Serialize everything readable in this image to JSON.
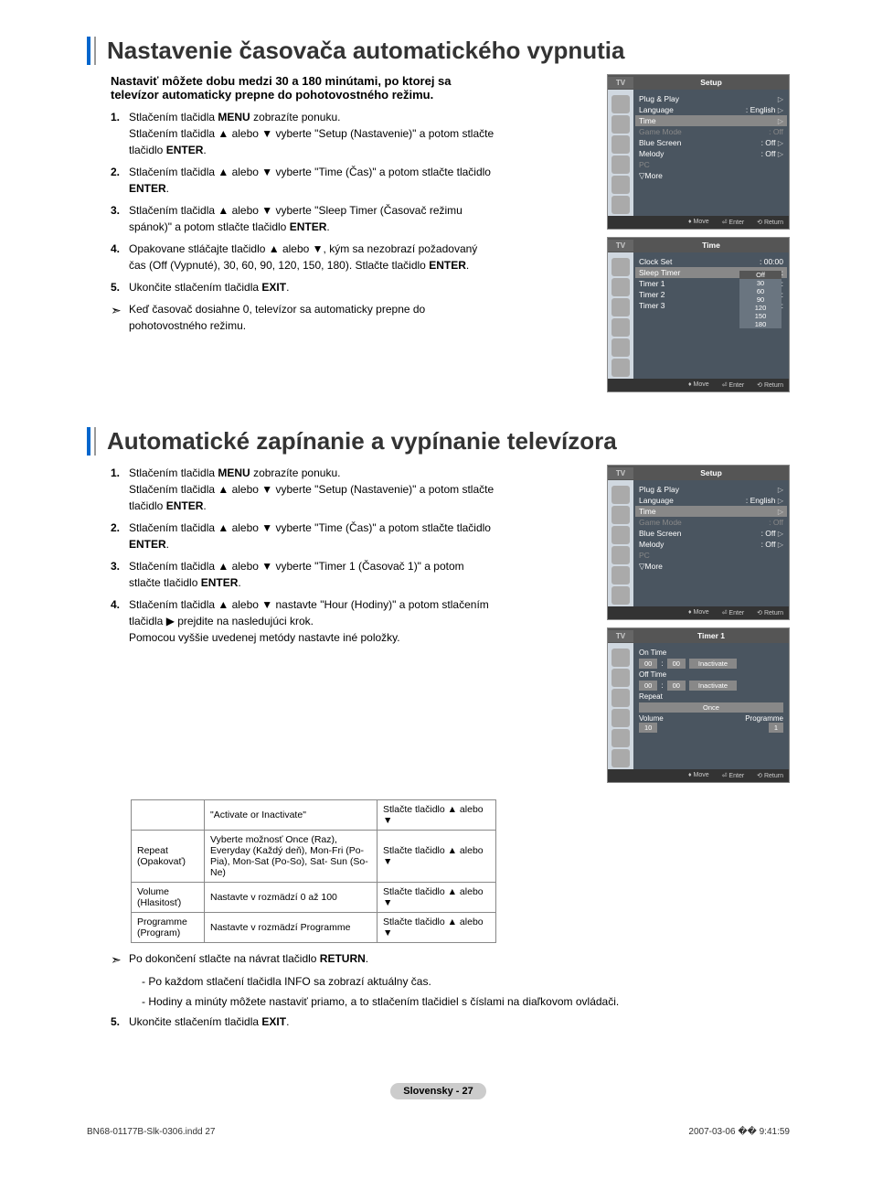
{
  "section1": {
    "title": "Nastavenie časovača automatického vypnutia",
    "intro": "Nastaviť môžete dobu medzi 30 a 180 minútami, po ktorej sa televízor automaticky prepne do pohotovostného režimu.",
    "steps": [
      "Stlačením tlačidla <b>MENU</b> zobrazíte ponuku.<br>Stlačením tlačidla ▲ alebo ▼ vyberte \"Setup (Nastavenie)\" a potom stlačte tlačidlo <b>ENTER</b>.",
      "Stlačením tlačidla ▲ alebo ▼ vyberte \"Time (Čas)\" a potom stlačte tlačidlo <b>ENTER</b>.",
      "Stlačením tlačidla ▲ alebo ▼ vyberte \"Sleep Timer (Časovač režimu spánok)\" a potom stlačte tlačidlo <b>ENTER</b>.",
      "Opakovane stláčajte tlačidlo ▲ alebo ▼, kým sa nezobrazí požadovaný čas (Off (Vypnuté), 30, 60, 90, 120, 150, 180). Stlačte tlačidlo <b>ENTER</b>.",
      "Ukončite stlačením tlačidla <b>EXIT</b>."
    ],
    "note": "Keď časovač dosiahne 0, televízor sa automaticky prepne do pohotovostného režimu."
  },
  "section2": {
    "title": "Automatické zapínanie a vypínanie televízora",
    "steps": [
      "Stlačením tlačidla <b>MENU</b> zobrazíte ponuku.<br>Stlačením tlačidla ▲ alebo ▼ vyberte \"Setup (Nastavenie)\" a potom stlačte tlačidlo <b>ENTER</b>.",
      "Stlačením tlačidla ▲ alebo ▼ vyberte \"Time (Čas)\" a potom stlačte tlačidlo <b>ENTER</b>.",
      "Stlačením tlačidla ▲ alebo ▼ vyberte \"Timer 1 (Časovač 1)\" a potom stlačte tlačidlo <b>ENTER</b>.",
      "Stlačením tlačidla ▲ alebo ▼ nastavte \"Hour (Hodiny)\" a potom stlačením tlačidla ▶ prejdite na nasledujúci krok.<br>Pomocou vyššie uvedenej metódy nastavte iné položky."
    ],
    "table": {
      "rows": [
        {
          "c1": "",
          "c2": "\"Activate or Inactivate\"",
          "c3": "Stlačte tlačidlo ▲ alebo ▼"
        },
        {
          "c1": "Repeat (Opakovať)",
          "c2": "Vyberte možnosť Once (Raz), Everyday (Každý deň), Mon-Fri (Po-Pia), Mon-Sat (Po-So), Sat- Sun (So-Ne)",
          "c3": "Stlačte tlačidlo ▲ alebo ▼"
        },
        {
          "c1": "Volume (Hlasitosť)",
          "c2": "Nastavte v rozmädzí 0 až 100",
          "c3": "Stlačte tlačidlo ▲ alebo ▼"
        },
        {
          "c1": "Programme (Program)",
          "c2": "Nastavte v rozmädzí Programme",
          "c3": "Stlačte tlačidlo ▲ alebo ▼"
        }
      ]
    },
    "note_return": "Po dokončení stlačte na návrat tlačidlo <b>RETURN</b>.",
    "subnotes": [
      "- Po každom stlačení tlačidla INFO sa zobrazí aktuálny čas.",
      "- Hodiny a minúty môžete nastaviť priamo, a to stlačením tlačidiel s číslami na diaľkovom ovládači."
    ],
    "step5": "Ukončite stlačením tlačidla <b>EXIT</b>."
  },
  "tvmenus": {
    "setup": {
      "title": "Setup",
      "items": [
        {
          "l": "Plug & Play",
          "v": "",
          "arrow": true
        },
        {
          "l": "Language",
          "v": ": English",
          "arrow": true
        },
        {
          "l": "Time",
          "v": "",
          "hl": true,
          "arrow": true
        },
        {
          "l": "Game Mode",
          "v": ": Off",
          "dim": true
        },
        {
          "l": "Blue Screen",
          "v": ": Off",
          "arrow": true
        },
        {
          "l": "Melody",
          "v": ": Off",
          "arrow": true
        },
        {
          "l": "PC",
          "v": "",
          "dim": true
        },
        {
          "l": "▽More",
          "v": ""
        }
      ]
    },
    "time": {
      "title": "Time",
      "items": [
        {
          "l": "Clock Set",
          "v": ": 00:00"
        },
        {
          "l": "Sleep Timer",
          "v": ":",
          "hl": true
        },
        {
          "l": "Timer 1",
          "v": ":"
        },
        {
          "l": "Timer 2",
          "v": ":"
        },
        {
          "l": "Timer 3",
          "v": ":"
        }
      ],
      "options": [
        "Off",
        "30",
        "60",
        "90",
        "120",
        "150",
        "180"
      ]
    },
    "timer1": {
      "title": "Timer 1",
      "on_time": "On Time",
      "off_time": "Off Time",
      "hh": "00",
      "mm": "00",
      "inactivate": "Inactivate",
      "repeat": "Repeat",
      "once": "Once",
      "volume": "Volume",
      "vol_val": "10",
      "programme": "Programme",
      "prog_val": "1"
    },
    "footer": {
      "move": "Move",
      "enter": "Enter",
      "return": "Return"
    }
  },
  "page": {
    "label": "Slovensky - 27",
    "file": "BN68-01177B-Slk-0306.indd   27",
    "timestamp": "2007-03-06   �� 9:41:59"
  }
}
